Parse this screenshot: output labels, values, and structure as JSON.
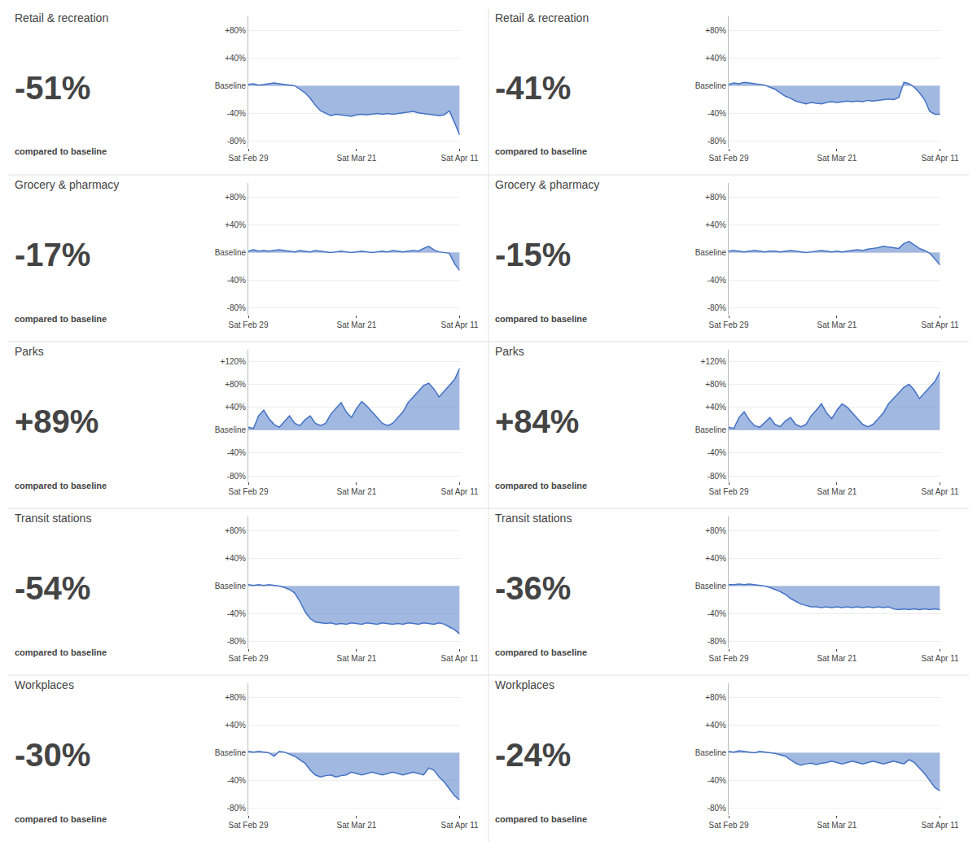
{
  "chart_data": [
    {
      "type": "area",
      "title": "Retail & recreation",
      "subtitle": "-51%",
      "annotations": [
        "compared to baseline"
      ],
      "categories": [
        "Sat Feb 29",
        null,
        null,
        null,
        null,
        null,
        null,
        null,
        null,
        null,
        null,
        null,
        null,
        null,
        null,
        null,
        null,
        null,
        null,
        null,
        null,
        "Sat Mar 21",
        null,
        null,
        null,
        null,
        null,
        null,
        null,
        null,
        null,
        null,
        null,
        null,
        null,
        null,
        null,
        null,
        null,
        null,
        null,
        "Sat Apr 11"
      ],
      "values": [
        2,
        3,
        1,
        2,
        3,
        4,
        3,
        2,
        1,
        0,
        -5,
        -10,
        -18,
        -28,
        -36,
        -40,
        -43,
        -41,
        -42,
        -43,
        -44,
        -42,
        -41,
        -42,
        -41,
        -40,
        -41,
        -40,
        -41,
        -40,
        -39,
        -38,
        -37,
        -39,
        -40,
        -41,
        -42,
        -43,
        -42,
        -36,
        -53,
        -71
      ],
      "ylim": [
        -90,
        100
      ],
      "yticks": [
        {
          "value": 80,
          "label": "+80%"
        },
        {
          "value": 40,
          "label": "+40%"
        },
        {
          "value": 0,
          "label": "Baseline"
        },
        {
          "value": -40,
          "label": "-40%"
        },
        {
          "value": -80,
          "label": "-80%"
        }
      ],
      "color": "#4472C4",
      "grid": true
    },
    {
      "type": "area",
      "title": "Retail & recreation",
      "subtitle": "-41%",
      "annotations": [
        "compared to baseline"
      ],
      "categories": [
        "Sat Feb 29",
        null,
        null,
        null,
        null,
        null,
        null,
        null,
        null,
        null,
        null,
        null,
        null,
        null,
        null,
        null,
        null,
        null,
        null,
        null,
        null,
        "Sat Mar 21",
        null,
        null,
        null,
        null,
        null,
        null,
        null,
        null,
        null,
        null,
        null,
        null,
        null,
        null,
        null,
        null,
        null,
        null,
        null,
        "Sat Apr 11"
      ],
      "values": [
        2,
        4,
        3,
        5,
        4,
        3,
        2,
        1,
        -2,
        -5,
        -10,
        -15,
        -18,
        -22,
        -24,
        -26,
        -24,
        -25,
        -26,
        -24,
        -23,
        -24,
        -23,
        -22,
        -23,
        -22,
        -23,
        -21,
        -22,
        -21,
        -20,
        -19,
        -20,
        -17,
        5,
        3,
        -2,
        -10,
        -20,
        -37,
        -41,
        -41
      ],
      "ylim": [
        -90,
        100
      ],
      "yticks": [
        {
          "value": 80,
          "label": "+80%"
        },
        {
          "value": 40,
          "label": "+40%"
        },
        {
          "value": 0,
          "label": "Baseline"
        },
        {
          "value": -40,
          "label": "-40%"
        },
        {
          "value": -80,
          "label": "-80%"
        }
      ],
      "color": "#4472C4",
      "grid": true
    },
    {
      "type": "area",
      "title": "Grocery & pharmacy",
      "subtitle": "-17%",
      "annotations": [
        "compared to baseline"
      ],
      "categories": [
        "Sat Feb 29",
        null,
        null,
        null,
        null,
        null,
        null,
        null,
        null,
        null,
        null,
        null,
        null,
        null,
        null,
        null,
        null,
        null,
        null,
        null,
        null,
        "Sat Mar 21",
        null,
        null,
        null,
        null,
        null,
        null,
        null,
        null,
        null,
        null,
        null,
        null,
        null,
        null,
        null,
        null,
        null,
        null,
        null,
        "Sat Apr 11"
      ],
      "values": [
        2,
        4,
        2,
        3,
        2,
        3,
        4,
        3,
        2,
        1,
        3,
        2,
        1,
        3,
        2,
        1,
        0,
        1,
        2,
        1,
        0,
        1,
        2,
        1,
        0,
        1,
        2,
        1,
        3,
        2,
        1,
        2,
        3,
        2,
        6,
        9,
        4,
        1,
        0,
        -1,
        -16,
        -26
      ],
      "ylim": [
        -90,
        100
      ],
      "yticks": [
        {
          "value": 80,
          "label": "+80%"
        },
        {
          "value": 40,
          "label": "+40%"
        },
        {
          "value": 0,
          "label": "Baseline"
        },
        {
          "value": -40,
          "label": "-40%"
        },
        {
          "value": -80,
          "label": "-80%"
        }
      ],
      "color": "#4472C4",
      "grid": true
    },
    {
      "type": "area",
      "title": "Grocery & pharmacy",
      "subtitle": "-15%",
      "annotations": [
        "compared to baseline"
      ],
      "categories": [
        "Sat Feb 29",
        null,
        null,
        null,
        null,
        null,
        null,
        null,
        null,
        null,
        null,
        null,
        null,
        null,
        null,
        null,
        null,
        null,
        null,
        null,
        null,
        "Sat Mar 21",
        null,
        null,
        null,
        null,
        null,
        null,
        null,
        null,
        null,
        null,
        null,
        null,
        null,
        null,
        null,
        null,
        null,
        null,
        null,
        "Sat Apr 11"
      ],
      "values": [
        2,
        3,
        2,
        1,
        2,
        3,
        2,
        1,
        2,
        2,
        1,
        2,
        3,
        2,
        1,
        0,
        1,
        2,
        3,
        2,
        1,
        2,
        1,
        2,
        3,
        4,
        3,
        5,
        6,
        7,
        9,
        8,
        7,
        6,
        13,
        16,
        11,
        6,
        3,
        -1,
        -9,
        -18
      ],
      "ylim": [
        -90,
        100
      ],
      "yticks": [
        {
          "value": 80,
          "label": "+80%"
        },
        {
          "value": 40,
          "label": "+40%"
        },
        {
          "value": 0,
          "label": "Baseline"
        },
        {
          "value": -40,
          "label": "-40%"
        },
        {
          "value": -80,
          "label": "-80%"
        }
      ],
      "color": "#4472C4",
      "grid": true
    },
    {
      "type": "area",
      "title": "Parks",
      "subtitle": "+89%",
      "annotations": [
        "compared to baseline"
      ],
      "categories": [
        "Sat Feb 29",
        null,
        null,
        null,
        null,
        null,
        null,
        null,
        null,
        null,
        null,
        null,
        null,
        null,
        null,
        null,
        null,
        null,
        null,
        null,
        null,
        "Sat Mar 21",
        null,
        null,
        null,
        null,
        null,
        null,
        null,
        null,
        null,
        null,
        null,
        null,
        null,
        null,
        null,
        null,
        null,
        null,
        null,
        "Sat Apr 11"
      ],
      "values": [
        5,
        3,
        25,
        35,
        20,
        10,
        5,
        15,
        25,
        12,
        8,
        18,
        25,
        12,
        8,
        12,
        28,
        38,
        48,
        32,
        22,
        38,
        50,
        42,
        32,
        22,
        12,
        8,
        12,
        22,
        32,
        48,
        58,
        68,
        78,
        82,
        72,
        58,
        68,
        78,
        88,
        108
      ],
      "ylim": [
        -90,
        140
      ],
      "yticks": [
        {
          "value": 120,
          "label": "+120%"
        },
        {
          "value": 80,
          "label": "+80%"
        },
        {
          "value": 40,
          "label": "+40%"
        },
        {
          "value": 0,
          "label": "Baseline"
        },
        {
          "value": -40,
          "label": "-40%"
        },
        {
          "value": -80,
          "label": "-80%"
        }
      ],
      "color": "#4472C4",
      "grid": true
    },
    {
      "type": "area",
      "title": "Parks",
      "subtitle": "+84%",
      "annotations": [
        "compared to baseline"
      ],
      "categories": [
        "Sat Feb 29",
        null,
        null,
        null,
        null,
        null,
        null,
        null,
        null,
        null,
        null,
        null,
        null,
        null,
        null,
        null,
        null,
        null,
        null,
        null,
        null,
        "Sat Mar 21",
        null,
        null,
        null,
        null,
        null,
        null,
        null,
        null,
        null,
        null,
        null,
        null,
        null,
        null,
        null,
        null,
        null,
        null,
        null,
        "Sat Apr 11"
      ],
      "values": [
        5,
        3,
        22,
        32,
        18,
        8,
        5,
        14,
        22,
        10,
        6,
        16,
        22,
        10,
        6,
        10,
        25,
        35,
        46,
        30,
        20,
        35,
        46,
        40,
        30,
        20,
        10,
        6,
        10,
        20,
        30,
        46,
        55,
        65,
        75,
        80,
        70,
        55,
        65,
        75,
        85,
        102
      ],
      "ylim": [
        -90,
        140
      ],
      "yticks": [
        {
          "value": 120,
          "label": "+120%"
        },
        {
          "value": 80,
          "label": "+80%"
        },
        {
          "value": 40,
          "label": "+40%"
        },
        {
          "value": 0,
          "label": "Baseline"
        },
        {
          "value": -40,
          "label": "-40%"
        },
        {
          "value": -80,
          "label": "-80%"
        }
      ],
      "color": "#4472C4",
      "grid": true
    },
    {
      "type": "area",
      "title": "Transit stations",
      "subtitle": "-54%",
      "annotations": [
        "compared to baseline"
      ],
      "categories": [
        "Sat Feb 29",
        null,
        null,
        null,
        null,
        null,
        null,
        null,
        null,
        null,
        null,
        null,
        null,
        null,
        null,
        null,
        null,
        null,
        null,
        null,
        null,
        "Sat Mar 21",
        null,
        null,
        null,
        null,
        null,
        null,
        null,
        null,
        null,
        null,
        null,
        null,
        null,
        null,
        null,
        null,
        null,
        null,
        null,
        "Sat Apr 11"
      ],
      "values": [
        2,
        1,
        2,
        1,
        2,
        1,
        0,
        -2,
        -5,
        -10,
        -22,
        -37,
        -47,
        -52,
        -53,
        -54,
        -53,
        -55,
        -54,
        -55,
        -53,
        -54,
        -55,
        -53,
        -54,
        -55,
        -53,
        -54,
        -55,
        -54,
        -55,
        -53,
        -54,
        -55,
        -53,
        -54,
        -55,
        -53,
        -55,
        -59,
        -63,
        -69
      ],
      "ylim": [
        -90,
        100
      ],
      "yticks": [
        {
          "value": 80,
          "label": "+80%"
        },
        {
          "value": 40,
          "label": "+40%"
        },
        {
          "value": 0,
          "label": "Baseline"
        },
        {
          "value": -40,
          "label": "-40%"
        },
        {
          "value": -80,
          "label": "-80%"
        }
      ],
      "color": "#4472C4",
      "grid": true
    },
    {
      "type": "area",
      "title": "Transit stations",
      "subtitle": "-36%",
      "annotations": [
        "compared to baseline"
      ],
      "categories": [
        "Sat Feb 29",
        null,
        null,
        null,
        null,
        null,
        null,
        null,
        null,
        null,
        null,
        null,
        null,
        null,
        null,
        null,
        null,
        null,
        null,
        null,
        null,
        "Sat Mar 21",
        null,
        null,
        null,
        null,
        null,
        null,
        null,
        null,
        null,
        null,
        null,
        null,
        null,
        null,
        null,
        null,
        null,
        null,
        null,
        "Sat Apr 11"
      ],
      "values": [
        2,
        2,
        3,
        2,
        3,
        2,
        1,
        0,
        -2,
        -5,
        -8,
        -12,
        -18,
        -22,
        -26,
        -28,
        -30,
        -30,
        -31,
        -30,
        -31,
        -30,
        -31,
        -30,
        -31,
        -30,
        -31,
        -30,
        -31,
        -30,
        -31,
        -30,
        -33,
        -34,
        -33,
        -34,
        -33,
        -34,
        -33,
        -34,
        -33,
        -34
      ],
      "ylim": [
        -90,
        100
      ],
      "yticks": [
        {
          "value": 80,
          "label": "+80%"
        },
        {
          "value": 40,
          "label": "+40%"
        },
        {
          "value": 0,
          "label": "Baseline"
        },
        {
          "value": -40,
          "label": "-40%"
        },
        {
          "value": -80,
          "label": "-80%"
        }
      ],
      "color": "#4472C4",
      "grid": true
    },
    {
      "type": "area",
      "title": "Workplaces",
      "subtitle": "-30%",
      "annotations": [
        "compared to baseline"
      ],
      "categories": [
        "Sat Feb 29",
        null,
        null,
        null,
        null,
        null,
        null,
        null,
        null,
        null,
        null,
        null,
        null,
        null,
        null,
        null,
        null,
        null,
        null,
        null,
        null,
        "Sat Mar 21",
        null,
        null,
        null,
        null,
        null,
        null,
        null,
        null,
        null,
        null,
        null,
        null,
        null,
        null,
        null,
        null,
        null,
        null,
        null,
        "Sat Apr 11"
      ],
      "values": [
        2,
        1,
        2,
        1,
        0,
        -5,
        2,
        1,
        -2,
        -5,
        -10,
        -15,
        -25,
        -32,
        -35,
        -33,
        -32,
        -35,
        -33,
        -32,
        -28,
        -30,
        -32,
        -30,
        -28,
        -30,
        -32,
        -30,
        -28,
        -30,
        -32,
        -30,
        -28,
        -30,
        -32,
        -22,
        -25,
        -35,
        -42,
        -52,
        -62,
        -68
      ],
      "ylim": [
        -90,
        100
      ],
      "yticks": [
        {
          "value": 80,
          "label": "+80%"
        },
        {
          "value": 40,
          "label": "+40%"
        },
        {
          "value": 0,
          "label": "Baseline"
        },
        {
          "value": -40,
          "label": "-40%"
        },
        {
          "value": -80,
          "label": "-80%"
        }
      ],
      "color": "#4472C4",
      "grid": true
    },
    {
      "type": "area",
      "title": "Workplaces",
      "subtitle": "-24%",
      "annotations": [
        "compared to baseline"
      ],
      "categories": [
        "Sat Feb 29",
        null,
        null,
        null,
        null,
        null,
        null,
        null,
        null,
        null,
        null,
        null,
        null,
        null,
        null,
        null,
        null,
        null,
        null,
        null,
        null,
        "Sat Mar 21",
        null,
        null,
        null,
        null,
        null,
        null,
        null,
        null,
        null,
        null,
        null,
        null,
        null,
        null,
        null,
        null,
        null,
        null,
        null,
        "Sat Apr 11"
      ],
      "values": [
        2,
        1,
        3,
        2,
        1,
        0,
        2,
        1,
        0,
        -1,
        -3,
        -5,
        -10,
        -15,
        -18,
        -16,
        -15,
        -17,
        -15,
        -14,
        -12,
        -14,
        -16,
        -14,
        -12,
        -14,
        -16,
        -14,
        -12,
        -14,
        -16,
        -14,
        -12,
        -14,
        -16,
        -10,
        -14,
        -22,
        -30,
        -40,
        -50,
        -55
      ],
      "ylim": [
        -90,
        100
      ],
      "yticks": [
        {
          "value": 80,
          "label": "+80%"
        },
        {
          "value": 40,
          "label": "+40%"
        },
        {
          "value": 0,
          "label": "Baseline"
        },
        {
          "value": -40,
          "label": "-40%"
        },
        {
          "value": -80,
          "label": "-80%"
        }
      ],
      "color": "#4472C4",
      "grid": true
    }
  ]
}
